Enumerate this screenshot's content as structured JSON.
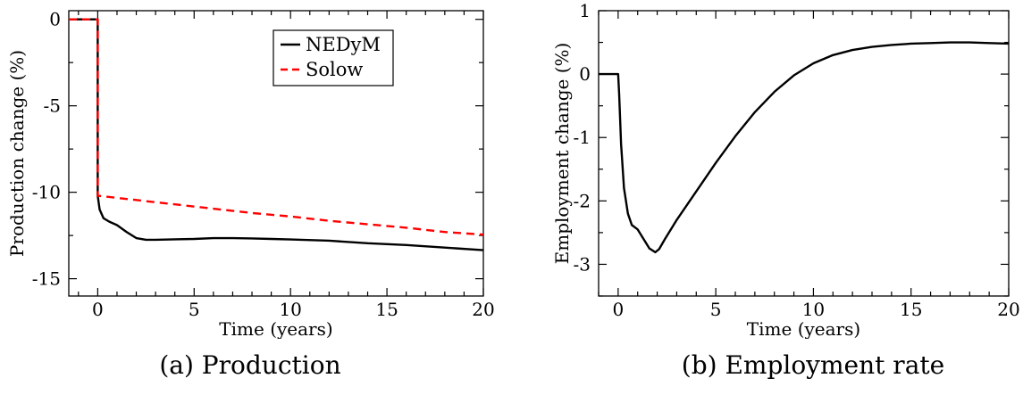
{
  "captions": {
    "a": "(a) Production",
    "b": "(b) Employment rate"
  },
  "chart_data": [
    {
      "type": "line",
      "title": "",
      "xlabel": "Time (years)",
      "ylabel": "Production change (%)",
      "xlim": [
        -1.5,
        20
      ],
      "ylim": [
        -16,
        0.5
      ],
      "xticks": [
        0,
        5,
        10,
        15,
        20
      ],
      "yticks": [
        0,
        -5,
        -10,
        -15
      ],
      "ytick_labels": [
        "0",
        "-5",
        "-10",
        "-15"
      ],
      "grid": false,
      "legend": "top-right",
      "series": [
        {
          "name": "NEDyM",
          "color": "#000000",
          "dash": "solid",
          "x": [
            -1.5,
            0,
            0,
            0.1,
            0.3,
            0.6,
            1.0,
            1.5,
            2.0,
            2.5,
            3,
            4,
            5,
            6,
            7,
            8,
            9,
            10,
            12,
            14,
            16,
            18,
            20
          ],
          "y": [
            0,
            0,
            -10.2,
            -11.0,
            -11.5,
            -11.7,
            -11.9,
            -12.3,
            -12.65,
            -12.75,
            -12.75,
            -12.72,
            -12.7,
            -12.65,
            -12.65,
            -12.67,
            -12.7,
            -12.73,
            -12.8,
            -12.95,
            -13.05,
            -13.2,
            -13.35
          ]
        },
        {
          "name": "Solow",
          "color": "#ff0000",
          "dash": "dashed",
          "x": [
            -1.5,
            0,
            0,
            2,
            4,
            6,
            8,
            10,
            12,
            14,
            16,
            18,
            20
          ],
          "y": [
            0,
            0,
            -10.2,
            -10.45,
            -10.7,
            -10.95,
            -11.2,
            -11.4,
            -11.65,
            -11.85,
            -12.05,
            -12.3,
            -12.45
          ]
        }
      ]
    },
    {
      "type": "line",
      "title": "",
      "xlabel": "Time (years)",
      "ylabel": "Employment change (%)",
      "xlim": [
        -1,
        20
      ],
      "ylim": [
        -3.5,
        1
      ],
      "xticks": [
        0,
        5,
        10,
        15,
        20
      ],
      "yticks": [
        1,
        0,
        -1,
        -2,
        -3
      ],
      "ytick_labels": [
        "1",
        "0",
        "-1",
        "-2",
        "-3"
      ],
      "grid": false,
      "legend": "none",
      "series": [
        {
          "name": "",
          "color": "#000000",
          "dash": "solid",
          "x": [
            -1,
            0,
            0.05,
            0.15,
            0.3,
            0.5,
            0.7,
            1.0,
            1.3,
            1.6,
            1.9,
            2.1,
            2.4,
            3,
            4,
            5,
            6,
            7,
            8,
            9,
            10,
            11,
            12,
            13,
            14,
            15,
            16,
            17,
            18,
            19,
            20
          ],
          "y": [
            0,
            0,
            -0.3,
            -1.1,
            -1.8,
            -2.2,
            -2.38,
            -2.45,
            -2.6,
            -2.75,
            -2.81,
            -2.76,
            -2.6,
            -2.3,
            -1.85,
            -1.4,
            -0.98,
            -0.6,
            -0.28,
            -0.02,
            0.17,
            0.3,
            0.38,
            0.43,
            0.46,
            0.48,
            0.49,
            0.5,
            0.5,
            0.49,
            0.48
          ]
        }
      ]
    }
  ]
}
